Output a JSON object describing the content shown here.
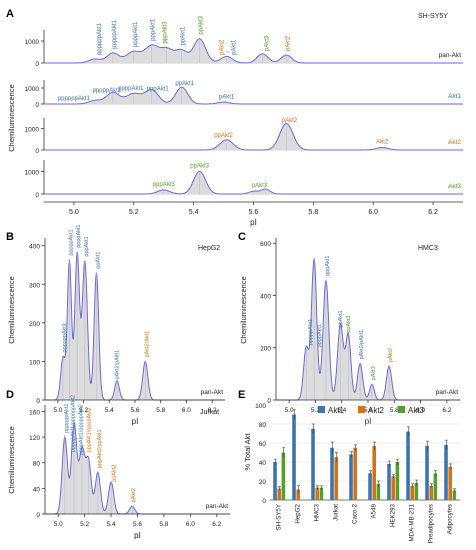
{
  "figure": {
    "panels": [
      {
        "id": "A",
        "label": "A",
        "title": "SH-SY5Y",
        "xlabel": "pI",
        "ylabel": "Chemiluminescence"
      },
      {
        "id": "B",
        "label": "B",
        "title": "HepG2",
        "xlabel": "pI",
        "ylabel": "Chemiluminescence"
      },
      {
        "id": "C",
        "label": "C",
        "title": "HMC3",
        "xlabel": "pI",
        "ylabel": "Chemiluminescence"
      },
      {
        "id": "D",
        "label": "D",
        "title": "Jurkat",
        "xlabel": "pI",
        "ylabel": "Chemiluminescence"
      },
      {
        "id": "E",
        "label": "E",
        "title": "",
        "xlabel": "",
        "ylabel": "% Total Akt"
      }
    ]
  },
  "colors": {
    "akt1": "#3b75af",
    "akt2": "#d6711a",
    "akt3": "#55a02a",
    "trace": "#6a6ad8",
    "fill": "#dcdcdc",
    "text": "#222222"
  },
  "chart_data": [
    {
      "type": "area",
      "panel": "A",
      "xlim": [
        4.9,
        6.3
      ],
      "xticks": [
        "5.0",
        "5.2",
        "5.4",
        "5.6",
        "5.8",
        "6.0",
        "6.2"
      ],
      "subplots": [
        {
          "name": "pan-Akt",
          "name_color": "#222222",
          "ylim": [
            0,
            1500
          ],
          "yticks": [
            "0",
            "1000"
          ],
          "peaks": [
            [
              5.07,
              180,
              0.02
            ],
            [
              5.13,
              450,
              0.02
            ],
            [
              5.2,
              520,
              0.025
            ],
            [
              5.26,
              750,
              0.022
            ],
            [
              5.31,
              620,
              0.022
            ],
            [
              5.36,
              560,
              0.02
            ],
            [
              5.42,
              1100,
              0.02
            ],
            [
              5.51,
              300,
              0.02
            ],
            [
              5.63,
              420,
              0.018
            ],
            [
              5.71,
              360,
              0.018
            ]
          ],
          "labels": [
            {
              "text": "ppppppAkt1",
              "color": "akt1",
              "x": 5.08
            },
            {
              "text": "pppppAkt1",
              "color": "akt1",
              "x": 5.13
            },
            {
              "text": "ppppAkt1",
              "color": "akt1",
              "x": 5.2
            },
            {
              "text": "pppAkt1",
              "color": "akt1",
              "x": 5.26
            },
            {
              "text": "pppAkt3",
              "color": "akt3",
              "x": 5.3
            },
            {
              "text": "ppAkt1",
              "color": "akt1",
              "x": 5.36
            },
            {
              "text": "ppAkt3",
              "color": "akt3",
              "x": 5.42
            },
            {
              "text": "pAkt2",
              "color": "akt2",
              "x": 5.49
            },
            {
              "text": "/",
              "color": "akt2",
              "x": 5.51
            },
            {
              "text": "pAkt1",
              "color": "akt1",
              "x": 5.53
            },
            {
              "text": "pAkt3",
              "color": "akt3",
              "x": 5.64
            },
            {
              "text": "pAkt2",
              "color": "akt2",
              "x": 5.71
            }
          ]
        },
        {
          "name": "Akt1",
          "name_color": "akt1",
          "ylim": [
            0,
            1500
          ],
          "yticks": [
            "0",
            "1000"
          ],
          "peaks": [
            [
              5.07,
              220,
              0.02
            ],
            [
              5.13,
              720,
              0.022
            ],
            [
              5.2,
              650,
              0.025
            ],
            [
              5.26,
              880,
              0.022
            ],
            [
              5.36,
              1050,
              0.02
            ],
            [
              5.5,
              120,
              0.02
            ]
          ],
          "labels": [
            {
              "text": "ppppppAkt1",
              "color": "akt1",
              "x": 5.0
            },
            {
              "text": "pppppAkt1",
              "color": "akt1",
              "x": 5.11
            },
            {
              "text": "ppppAkt1",
              "color": "akt1",
              "x": 5.19
            },
            {
              "text": "pppAkt1",
              "color": "akt1",
              "x": 5.28
            },
            {
              "text": "ppAkt1",
              "color": "akt1",
              "x": 5.37
            },
            {
              "text": "pAkt1",
              "color": "akt1",
              "x": 5.51
            }
          ]
        },
        {
          "name": "Akt2",
          "name_color": "akt2",
          "ylim": [
            0,
            1500
          ],
          "yticks": [
            "0",
            "1000"
          ],
          "peaks": [
            [
              5.51,
              480,
              0.022
            ],
            [
              5.71,
              1250,
              0.022
            ],
            [
              6.03,
              120,
              0.02
            ]
          ],
          "labels": [
            {
              "text": "ppAkt2",
              "color": "akt2",
              "x": 5.5
            },
            {
              "text": "pAkt2",
              "color": "akt2",
              "x": 5.72
            },
            {
              "text": "Akt2",
              "color": "akt2",
              "x": 6.03
            }
          ]
        },
        {
          "name": "Akt3",
          "name_color": "akt3",
          "ylim": [
            0,
            1500
          ],
          "yticks": [
            "0",
            "1000"
          ],
          "peaks": [
            [
              5.3,
              180,
              0.02
            ],
            [
              5.42,
              1000,
              0.02
            ],
            [
              5.6,
              120,
              0.015
            ],
            [
              5.64,
              220,
              0.015
            ]
          ],
          "labels": [
            {
              "text": "pppAkt3",
              "color": "akt3",
              "x": 5.3
            },
            {
              "text": "ppAkt3",
              "color": "akt3",
              "x": 5.42
            },
            {
              "text": "pAkt3",
              "color": "akt3",
              "x": 5.62
            }
          ]
        }
      ]
    },
    {
      "type": "area",
      "panel": "B",
      "name": "pan-Akt",
      "xlim": [
        4.9,
        6.3
      ],
      "ylim": [
        0,
        420
      ],
      "xticks": [
        "5.0",
        "5.2",
        "5.4",
        "5.6",
        "5.8",
        "6.0",
        "6.2"
      ],
      "yticks": [
        "0",
        "100",
        "200",
        "300",
        "400"
      ],
      "peaks": [
        [
          5.04,
          110,
          0.018
        ],
        [
          5.09,
          360,
          0.016
        ],
        [
          5.15,
          380,
          0.018
        ],
        [
          5.21,
          360,
          0.02
        ],
        [
          5.3,
          330,
          0.018
        ],
        [
          5.46,
          50,
          0.018
        ],
        [
          5.68,
          100,
          0.02
        ]
      ],
      "labels": [
        {
          "text": "ppppppAkt1",
          "color": "akt1",
          "x": 5.04
        },
        {
          "text": "pppppAkt1",
          "color": "akt1",
          "x": 5.09
        },
        {
          "text": "ppppAkt1",
          "color": "akt1",
          "x": 5.15
        },
        {
          "text": "pppAkt1",
          "color": "akt1",
          "x": 5.21
        },
        {
          "text": "ppAkt1",
          "color": "akt1",
          "x": 5.3
        },
        {
          "text": "pAkt2/pAkt1",
          "color": "akt1",
          "x": 5.45
        },
        {
          "text": "pAkt2/Akt1",
          "color": "akt2",
          "x": 5.68
        }
      ]
    },
    {
      "type": "area",
      "panel": "C",
      "name": "pan-Akt",
      "xlim": [
        4.9,
        6.3
      ],
      "ylim": [
        0,
        620
      ],
      "xticks": [
        "5.0",
        "5.2",
        "5.4",
        "5.6",
        "5.8",
        "6.0",
        "6.2"
      ],
      "yticks": [
        "0",
        "200",
        "400",
        "600"
      ],
      "peaks": [
        [
          5.13,
          200,
          0.02
        ],
        [
          5.19,
          540,
          0.02
        ],
        [
          5.28,
          460,
          0.022
        ],
        [
          5.39,
          290,
          0.022
        ],
        [
          5.45,
          250,
          0.02
        ],
        [
          5.54,
          140,
          0.02
        ],
        [
          5.63,
          60,
          0.018
        ],
        [
          5.76,
          130,
          0.02
        ]
      ],
      "labels": [
        {
          "text": "pppppAkt1",
          "color": "akt1",
          "x": 5.15
        },
        {
          "text": "ppppAkt1",
          "color": "akt1",
          "x": 5.22
        },
        {
          "text": "pppAkt1",
          "color": "akt1",
          "x": 5.28
        },
        {
          "text": "ppAkt1",
          "color": "akt1",
          "x": 5.38
        },
        {
          "text": "ppAkt3",
          "color": "akt3",
          "x": 5.44
        },
        {
          "text": "pAkt2/pAkt1",
          "color": "akt1",
          "x": 5.54
        },
        {
          "text": "pAkt3",
          "color": "akt3",
          "x": 5.63
        },
        {
          "text": "pAkt2",
          "color": "akt2",
          "x": 5.76
        }
      ]
    },
    {
      "type": "area",
      "panel": "D",
      "name": "pan-Akt",
      "xlim": [
        4.9,
        6.3
      ],
      "ylim": [
        0,
        170
      ],
      "xticks": [
        "5.0",
        "5.2",
        "5.4",
        "5.6",
        "5.8",
        "6.0",
        "6.2"
      ],
      "yticks": [
        "0",
        "40",
        "80",
        "120",
        "160"
      ],
      "peaks": [
        [
          5.05,
          120,
          0.02
        ],
        [
          5.12,
          140,
          0.02
        ],
        [
          5.18,
          100,
          0.022
        ],
        [
          5.23,
          80,
          0.02
        ],
        [
          5.3,
          65,
          0.02
        ],
        [
          5.4,
          50,
          0.02
        ],
        [
          5.56,
          12,
          0.02
        ]
      ],
      "labels": [
        {
          "text": "ppppppAkt1",
          "color": "akt1",
          "x": 5.05
        },
        {
          "text": "pppppAkt1/ppppppAkt2",
          "color": "akt1",
          "x": 5.1
        },
        {
          "text": "ppppAkt1/pppppAkt2",
          "color": "akt1",
          "x": 5.16
        },
        {
          "text": "pppAkt1/ppppAkt2",
          "color": "akt2",
          "x": 5.22
        },
        {
          "text": "pppAkt2/ppAkt1",
          "color": "akt2",
          "x": 5.3
        },
        {
          "text": "ppAkt2",
          "color": "akt2",
          "x": 5.41
        },
        {
          "text": "pAkt2",
          "color": "akt2",
          "x": 5.56
        }
      ]
    },
    {
      "type": "bar",
      "panel": "E",
      "categories": [
        "SH-SY5Y",
        "HepG2",
        "HMC3",
        "Jurkat",
        "Caco-2",
        "A549",
        "HEK293",
        "MDA-MB-231",
        "Preadipocytes",
        "Adipocytes"
      ],
      "ylim": [
        0,
        100
      ],
      "yticks": [
        "0",
        "20",
        "40",
        "60",
        "80",
        "100"
      ],
      "ylabel": "% Total Akt",
      "series": [
        {
          "name": "Akt1",
          "color_key": "akt1",
          "values": [
            40,
            90,
            75,
            55,
            48,
            28,
            38,
            72,
            57,
            58
          ],
          "errors": [
            3,
            5,
            5,
            6,
            3,
            3,
            3,
            5,
            5,
            5
          ]
        },
        {
          "name": "Akt2",
          "color_key": "akt2",
          "values": [
            12,
            11,
            13,
            45,
            55,
            57,
            25,
            15,
            15,
            35
          ],
          "errors": [
            2,
            4,
            2,
            5,
            3,
            4,
            2,
            2,
            2,
            3
          ]
        },
        {
          "name": "Akt3",
          "color_key": "akt3",
          "values": [
            50,
            0,
            13,
            0,
            0,
            17,
            40,
            18,
            28,
            10
          ],
          "errors": [
            5,
            0,
            2,
            0,
            0,
            3,
            3,
            3,
            3,
            2
          ]
        }
      ]
    }
  ]
}
